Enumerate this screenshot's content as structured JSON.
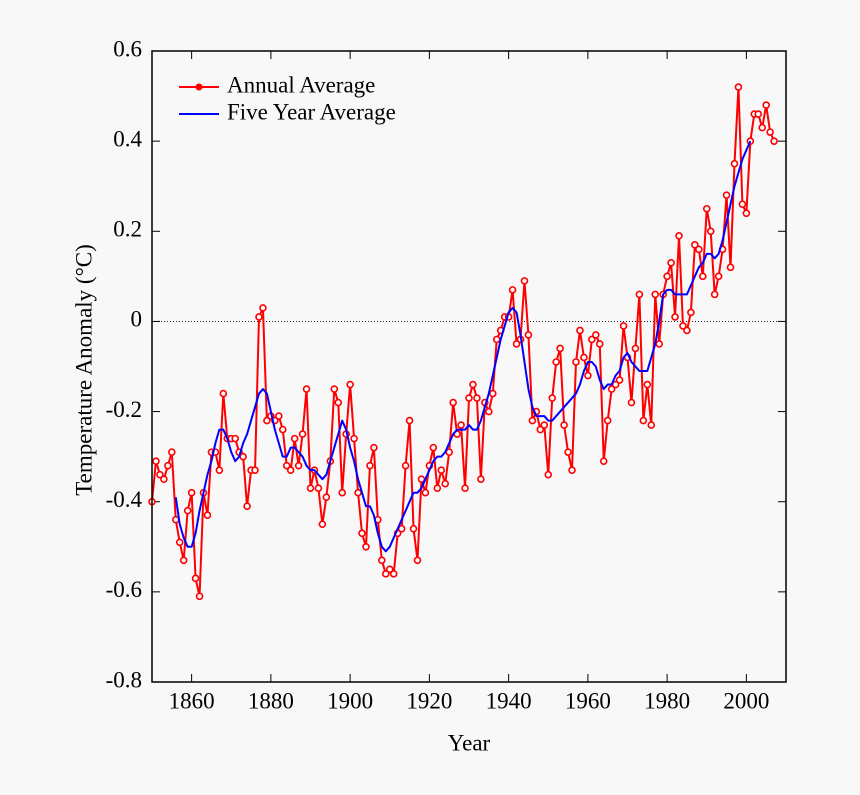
{
  "chart_data": {
    "type": "line",
    "xlabel": "Year",
    "ylabel": "Temperature Anomaly (°C)",
    "x": [
      1850,
      1851,
      1852,
      1853,
      1854,
      1855,
      1856,
      1857,
      1858,
      1859,
      1860,
      1861,
      1862,
      1863,
      1864,
      1865,
      1866,
      1867,
      1868,
      1869,
      1870,
      1871,
      1872,
      1873,
      1874,
      1875,
      1876,
      1877,
      1878,
      1879,
      1880,
      1881,
      1882,
      1883,
      1884,
      1885,
      1886,
      1887,
      1888,
      1889,
      1890,
      1891,
      1892,
      1893,
      1894,
      1895,
      1896,
      1897,
      1898,
      1899,
      1900,
      1901,
      1902,
      1903,
      1904,
      1905,
      1906,
      1907,
      1908,
      1909,
      1910,
      1911,
      1912,
      1913,
      1914,
      1915,
      1916,
      1917,
      1918,
      1919,
      1920,
      1921,
      1922,
      1923,
      1924,
      1925,
      1926,
      1927,
      1928,
      1929,
      1930,
      1931,
      1932,
      1933,
      1934,
      1935,
      1936,
      1937,
      1938,
      1939,
      1940,
      1941,
      1942,
      1943,
      1944,
      1945,
      1946,
      1947,
      1948,
      1949,
      1950,
      1951,
      1952,
      1953,
      1954,
      1955,
      1956,
      1957,
      1958,
      1959,
      1960,
      1961,
      1962,
      1963,
      1964,
      1965,
      1966,
      1967,
      1968,
      1969,
      1970,
      1971,
      1972,
      1973,
      1974,
      1975,
      1976,
      1977,
      1978,
      1979,
      1980,
      1981,
      1982,
      1983,
      1984,
      1985,
      1986,
      1987,
      1988,
      1989,
      1990,
      1991,
      1992,
      1993,
      1994,
      1995,
      1996,
      1997,
      1998,
      1999,
      2000,
      2001,
      2002,
      2003,
      2004,
      2005,
      2006,
      2007
    ],
    "series": [
      {
        "name": "Annual Average",
        "color": "#ff0000",
        "markers": true,
        "values": [
          -0.4,
          -0.31,
          -0.34,
          -0.35,
          -0.32,
          -0.29,
          -0.44,
          -0.49,
          -0.53,
          -0.42,
          -0.38,
          -0.57,
          -0.61,
          -0.38,
          -0.43,
          -0.29,
          -0.29,
          -0.33,
          -0.16,
          -0.26,
          -0.26,
          -0.26,
          -0.29,
          -0.3,
          -0.41,
          -0.33,
          -0.33,
          0.01,
          0.03,
          -0.22,
          -0.21,
          -0.22,
          -0.21,
          -0.24,
          -0.32,
          -0.33,
          -0.26,
          -0.32,
          -0.25,
          -0.15,
          -0.37,
          -0.33,
          -0.37,
          -0.45,
          -0.39,
          -0.31,
          -0.15,
          -0.18,
          -0.38,
          -0.25,
          -0.14,
          -0.26,
          -0.38,
          -0.47,
          -0.5,
          -0.32,
          -0.28,
          -0.44,
          -0.53,
          -0.56,
          -0.55,
          -0.56,
          -0.47,
          -0.46,
          -0.32,
          -0.22,
          -0.46,
          -0.53,
          -0.35,
          -0.38,
          -0.32,
          -0.28,
          -0.37,
          -0.33,
          -0.36,
          -0.29,
          -0.18,
          -0.25,
          -0.23,
          -0.37,
          -0.17,
          -0.14,
          -0.17,
          -0.35,
          -0.18,
          -0.2,
          -0.16,
          -0.04,
          -0.02,
          0.01,
          0.01,
          0.07,
          -0.05,
          -0.04,
          0.09,
          -0.03,
          -0.22,
          -0.2,
          -0.24,
          -0.23,
          -0.34,
          -0.17,
          -0.09,
          -0.06,
          -0.23,
          -0.29,
          -0.33,
          -0.09,
          -0.02,
          -0.08,
          -0.12,
          -0.04,
          -0.03,
          -0.05,
          -0.31,
          -0.22,
          -0.15,
          -0.14,
          -0.13,
          -0.01,
          -0.08,
          -0.18,
          -0.06,
          0.06,
          -0.22,
          -0.14,
          -0.23,
          0.06,
          -0.05,
          0.06,
          0.1,
          0.13,
          0.01,
          0.19,
          -0.01,
          -0.02,
          0.02,
          0.17,
          0.16,
          0.1,
          0.25,
          0.2,
          0.06,
          0.1,
          0.16,
          0.28,
          0.12,
          0.35,
          0.52,
          0.26,
          0.24,
          0.4,
          0.46,
          0.46,
          0.43,
          0.48,
          0.42,
          0.4
        ]
      },
      {
        "name": "Five Year Average",
        "color": "#0000ff",
        "markers": false,
        "values": [
          null,
          null,
          null,
          null,
          null,
          null,
          -0.39,
          -0.45,
          -0.48,
          -0.5,
          -0.5,
          -0.47,
          -0.42,
          -0.38,
          -0.34,
          -0.31,
          -0.27,
          -0.24,
          -0.24,
          -0.26,
          -0.29,
          -0.31,
          -0.3,
          -0.27,
          -0.25,
          -0.22,
          -0.19,
          -0.16,
          -0.15,
          -0.16,
          -0.2,
          -0.24,
          -0.27,
          -0.3,
          -0.3,
          -0.28,
          -0.28,
          -0.29,
          -0.3,
          -0.32,
          -0.33,
          -0.33,
          -0.34,
          -0.35,
          -0.34,
          -0.31,
          -0.28,
          -0.25,
          -0.22,
          -0.24,
          -0.28,
          -0.31,
          -0.35,
          -0.38,
          -0.41,
          -0.41,
          -0.43,
          -0.47,
          -0.5,
          -0.51,
          -0.5,
          -0.48,
          -0.46,
          -0.44,
          -0.42,
          -0.4,
          -0.38,
          -0.38,
          -0.37,
          -0.35,
          -0.33,
          -0.31,
          -0.3,
          -0.3,
          -0.29,
          -0.27,
          -0.25,
          -0.24,
          -0.24,
          -0.24,
          -0.23,
          -0.24,
          -0.24,
          -0.22,
          -0.19,
          -0.16,
          -0.12,
          -0.08,
          -0.04,
          -0.01,
          0.02,
          0.03,
          0.02,
          -0.03,
          -0.09,
          -0.15,
          -0.19,
          -0.21,
          -0.21,
          -0.21,
          -0.22,
          -0.22,
          -0.21,
          -0.2,
          -0.19,
          -0.18,
          -0.17,
          -0.16,
          -0.14,
          -0.11,
          -0.09,
          -0.09,
          -0.1,
          -0.13,
          -0.15,
          -0.14,
          -0.14,
          -0.12,
          -0.11,
          -0.08,
          -0.07,
          -0.09,
          -0.1,
          -0.11,
          -0.11,
          -0.11,
          -0.08,
          -0.05,
          0.0,
          0.06,
          0.07,
          0.07,
          0.06,
          0.06,
          0.06,
          0.06,
          0.08,
          0.1,
          0.12,
          0.13,
          0.15,
          0.15,
          0.14,
          0.15,
          0.18,
          0.22,
          0.26,
          0.3,
          0.33,
          0.36,
          0.38,
          0.4,
          null,
          null,
          null,
          null,
          null,
          null
        ]
      }
    ],
    "xlim": [
      1850,
      2010
    ],
    "xticks": [
      1860,
      1880,
      1900,
      1920,
      1940,
      1960,
      1980,
      2000
    ],
    "ylim": [
      -0.8,
      0.6
    ],
    "yticks": [
      -0.8,
      -0.6,
      -0.4,
      -0.2,
      0,
      0.2,
      0.4,
      0.6
    ],
    "zero_line": true,
    "legend": "upper left"
  }
}
